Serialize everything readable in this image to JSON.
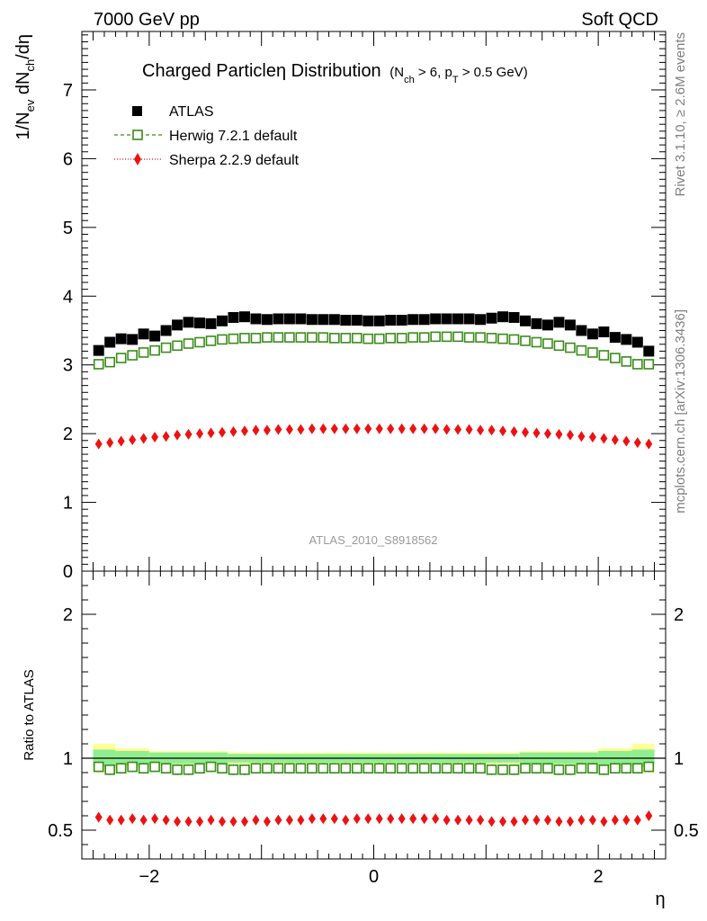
{
  "header": {
    "energy_label": "7000 GeV pp",
    "category_label": "Soft QCD"
  },
  "side": {
    "rivet_label": "Rivet 3.1.10, ≥ 2.6M events",
    "site_label": "mcplots.cern.ch [arXiv:1306.3436]"
  },
  "chart_data": {
    "type": "scatter",
    "title": "Charged Particleη Distribution",
    "subtitle": "(N_ch > 6, p_T > 0.5 GeV)",
    "subtitle_parts": {
      "open": "(N",
      "sub1": "ch",
      "mid": " > 6, p",
      "sub2": "T",
      "close": " > 0.5 GeV)"
    },
    "watermark": "ATLAS_2010_S8918562",
    "xlabel": "η",
    "ylabel": "1/N_ev dN_ch/dη",
    "ylabel_parts": {
      "a": "1/N",
      "a_sub": "ev",
      "b": " dN",
      "b_sub": "ch",
      "c": "/dη"
    },
    "ratio_ylabel": "Ratio to ATLAS",
    "xlim": [
      -2.6,
      2.6
    ],
    "ylim": [
      0,
      7.85
    ],
    "ratio_ylim": [
      0.3,
      2.3
    ],
    "x_ticks": [
      -2,
      0,
      2
    ],
    "x_tick_labels": [
      "−2",
      "0",
      "2"
    ],
    "y_ticks": [
      0,
      1,
      2,
      3,
      4,
      5,
      6,
      7
    ],
    "y_tick_labels": [
      "0",
      "1",
      "2",
      "3",
      "4",
      "5",
      "6",
      "7"
    ],
    "ratio_ticks": [
      0.5,
      1,
      2
    ],
    "ratio_tick_labels": [
      "0.5",
      "1",
      "2"
    ],
    "legend": [
      {
        "name": "ATLAS",
        "marker": "filled-square",
        "color": "#000000"
      },
      {
        "name": "Herwig 7.2.1 default",
        "marker": "open-square",
        "color": "#3a8c1a",
        "line": "dashed"
      },
      {
        "name": "Sherpa 2.2.9 default",
        "marker": "diamond",
        "color": "#ee1111",
        "line": "dotted"
      }
    ],
    "x": [
      -2.45,
      -2.35,
      -2.25,
      -2.15,
      -2.05,
      -1.95,
      -1.85,
      -1.75,
      -1.65,
      -1.55,
      -1.45,
      -1.35,
      -1.25,
      -1.15,
      -1.05,
      -0.95,
      -0.85,
      -0.75,
      -0.65,
      -0.55,
      -0.45,
      -0.35,
      -0.25,
      -0.15,
      -0.05,
      0.05,
      0.15,
      0.25,
      0.35,
      0.45,
      0.55,
      0.65,
      0.75,
      0.85,
      0.95,
      1.05,
      1.15,
      1.25,
      1.35,
      1.45,
      1.55,
      1.65,
      1.75,
      1.85,
      1.95,
      2.05,
      2.15,
      2.25,
      2.35,
      2.45
    ],
    "series": [
      {
        "name": "ATLAS",
        "values": [
          3.21,
          3.33,
          3.38,
          3.37,
          3.45,
          3.42,
          3.5,
          3.58,
          3.62,
          3.61,
          3.6,
          3.64,
          3.69,
          3.7,
          3.67,
          3.66,
          3.67,
          3.67,
          3.67,
          3.66,
          3.66,
          3.66,
          3.65,
          3.65,
          3.64,
          3.64,
          3.65,
          3.65,
          3.66,
          3.66,
          3.67,
          3.67,
          3.67,
          3.67,
          3.66,
          3.68,
          3.7,
          3.69,
          3.64,
          3.6,
          3.58,
          3.62,
          3.58,
          3.5,
          3.45,
          3.48,
          3.4,
          3.37,
          3.33,
          3.2
        ]
      },
      {
        "name": "Herwig 7.2.1 default",
        "values": [
          3.01,
          3.04,
          3.1,
          3.14,
          3.18,
          3.21,
          3.25,
          3.28,
          3.31,
          3.33,
          3.35,
          3.37,
          3.38,
          3.39,
          3.39,
          3.4,
          3.4,
          3.4,
          3.4,
          3.4,
          3.4,
          3.39,
          3.39,
          3.39,
          3.38,
          3.38,
          3.39,
          3.39,
          3.4,
          3.4,
          3.41,
          3.41,
          3.41,
          3.4,
          3.4,
          3.39,
          3.38,
          3.37,
          3.35,
          3.33,
          3.31,
          3.28,
          3.25,
          3.21,
          3.18,
          3.14,
          3.1,
          3.05,
          3.01,
          3.01
        ]
      },
      {
        "name": "Sherpa 2.2.9 default",
        "values": [
          1.85,
          1.87,
          1.89,
          1.91,
          1.93,
          1.95,
          1.96,
          1.98,
          1.99,
          2.0,
          2.01,
          2.02,
          2.03,
          2.04,
          2.05,
          2.05,
          2.06,
          2.06,
          2.06,
          2.07,
          2.07,
          2.07,
          2.07,
          2.07,
          2.07,
          2.07,
          2.07,
          2.07,
          2.07,
          2.07,
          2.07,
          2.06,
          2.06,
          2.06,
          2.05,
          2.05,
          2.04,
          2.03,
          2.02,
          2.01,
          2.0,
          1.99,
          1.98,
          1.96,
          1.95,
          1.93,
          1.91,
          1.89,
          1.87,
          1.85
        ]
      }
    ],
    "ratio_series": [
      {
        "name": "Herwig 7.2.1 default",
        "values": [
          0.94,
          0.92,
          0.93,
          0.94,
          0.93,
          0.94,
          0.93,
          0.92,
          0.92,
          0.93,
          0.94,
          0.93,
          0.92,
          0.92,
          0.93,
          0.93,
          0.93,
          0.93,
          0.93,
          0.93,
          0.93,
          0.93,
          0.93,
          0.93,
          0.93,
          0.93,
          0.93,
          0.93,
          0.93,
          0.93,
          0.93,
          0.93,
          0.93,
          0.93,
          0.93,
          0.92,
          0.92,
          0.92,
          0.93,
          0.93,
          0.93,
          0.92,
          0.92,
          0.93,
          0.93,
          0.92,
          0.93,
          0.93,
          0.93,
          0.94
        ]
      },
      {
        "name": "Sherpa 2.2.9 default",
        "values": [
          0.59,
          0.57,
          0.57,
          0.58,
          0.57,
          0.58,
          0.57,
          0.56,
          0.56,
          0.56,
          0.57,
          0.56,
          0.56,
          0.56,
          0.57,
          0.56,
          0.57,
          0.57,
          0.57,
          0.58,
          0.58,
          0.58,
          0.57,
          0.58,
          0.58,
          0.58,
          0.58,
          0.58,
          0.58,
          0.58,
          0.58,
          0.57,
          0.57,
          0.57,
          0.57,
          0.56,
          0.56,
          0.56,
          0.57,
          0.57,
          0.57,
          0.56,
          0.56,
          0.57,
          0.57,
          0.56,
          0.57,
          0.57,
          0.57,
          0.6
        ]
      }
    ],
    "uncertainty_bands": [
      {
        "x": [
          -2.5,
          -2.3
        ],
        "stat": 0.06,
        "total": 0.1
      },
      {
        "x": [
          -2.3,
          -2.0
        ],
        "stat": 0.05,
        "total": 0.07
      },
      {
        "x": [
          -2.0,
          -1.3
        ],
        "stat": 0.04,
        "total": 0.05
      },
      {
        "x": [
          -1.3,
          1.3
        ],
        "stat": 0.03,
        "total": 0.04
      },
      {
        "x": [
          1.3,
          2.0
        ],
        "stat": 0.04,
        "total": 0.05
      },
      {
        "x": [
          2.0,
          2.3
        ],
        "stat": 0.05,
        "total": 0.07
      },
      {
        "x": [
          2.3,
          2.5
        ],
        "stat": 0.06,
        "total": 0.1
      }
    ],
    "colors": {
      "band_inner": "#90ee90",
      "band_outer": "#ffff99",
      "atlas": "#000000",
      "herwig": "#3a8c1a",
      "sherpa": "#ee1111"
    }
  }
}
